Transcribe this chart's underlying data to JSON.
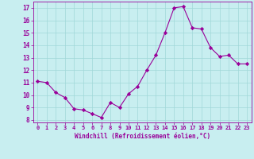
{
  "x": [
    0,
    1,
    2,
    3,
    4,
    5,
    6,
    7,
    8,
    9,
    10,
    11,
    12,
    13,
    14,
    15,
    16,
    17,
    18,
    19,
    20,
    21,
    22,
    23
  ],
  "y": [
    11.1,
    11.0,
    10.2,
    9.8,
    8.9,
    8.8,
    8.5,
    8.2,
    9.4,
    9.0,
    10.1,
    10.7,
    12.0,
    13.2,
    15.0,
    17.0,
    17.1,
    15.4,
    15.3,
    13.8,
    13.1,
    13.2,
    12.5,
    12.5
  ],
  "line_color": "#990099",
  "marker": "D",
  "marker_size": 2.2,
  "bg_color": "#c8eef0",
  "grid_color": "#a0d8d8",
  "xlabel": "Windchill (Refroidissement éolien,°C)",
  "tick_color": "#990099",
  "xlim": [
    -0.5,
    23.5
  ],
  "ylim": [
    7.8,
    17.5
  ],
  "yticks": [
    8,
    9,
    10,
    11,
    12,
    13,
    14,
    15,
    16,
    17
  ],
  "xticks": [
    0,
    1,
    2,
    3,
    4,
    5,
    6,
    7,
    8,
    9,
    10,
    11,
    12,
    13,
    14,
    15,
    16,
    17,
    18,
    19,
    20,
    21,
    22,
    23
  ]
}
